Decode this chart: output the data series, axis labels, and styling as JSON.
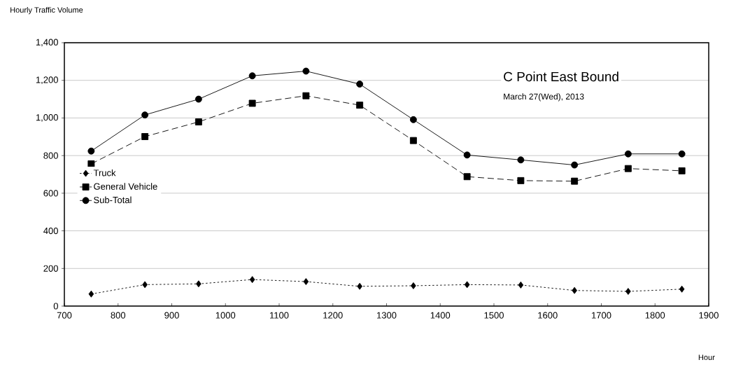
{
  "chart_data": {
    "type": "line",
    "title": "C Point East Bound",
    "subtitle": "March 27(Wed), 2013",
    "xlabel": "Hour",
    "ylabel": "Hourly Traffic Volume",
    "x": [
      750,
      850,
      950,
      1050,
      1150,
      1250,
      1350,
      1450,
      1550,
      1650,
      1750,
      1850
    ],
    "series": [
      {
        "name": "Truck",
        "color": "#000000",
        "marker": "diamond",
        "line_style": "dotted",
        "values": [
          64,
          114,
          118,
          141,
          130,
          105,
          108,
          114,
          112,
          83,
          78,
          90
        ]
      },
      {
        "name": "General Vehicle",
        "color": "#000000",
        "marker": "square",
        "line_style": "dashed",
        "values": [
          756,
          901,
          979,
          1078,
          1118,
          1068,
          880,
          688,
          667,
          664,
          731,
          719
        ]
      },
      {
        "name": "Sub-Total",
        "color": "#000000",
        "marker": "circle",
        "line_style": "solid",
        "values": [
          824,
          1016,
          1100,
          1224,
          1249,
          1180,
          991,
          803,
          777,
          750,
          809,
          809
        ]
      }
    ],
    "xlim": [
      700,
      1900
    ],
    "xticks": [
      700,
      800,
      900,
      1000,
      1100,
      1200,
      1300,
      1400,
      1500,
      1600,
      1700,
      1800,
      1900
    ],
    "ylim": [
      0,
      1400
    ],
    "yticks": [
      0,
      200,
      400,
      600,
      800,
      {
        "value": 1000,
        "label": "1,000"
      },
      {
        "value": 1200,
        "label": "1,200"
      },
      {
        "value": 1400,
        "label": "1,400"
      }
    ],
    "grid": "y",
    "legend": "left"
  }
}
